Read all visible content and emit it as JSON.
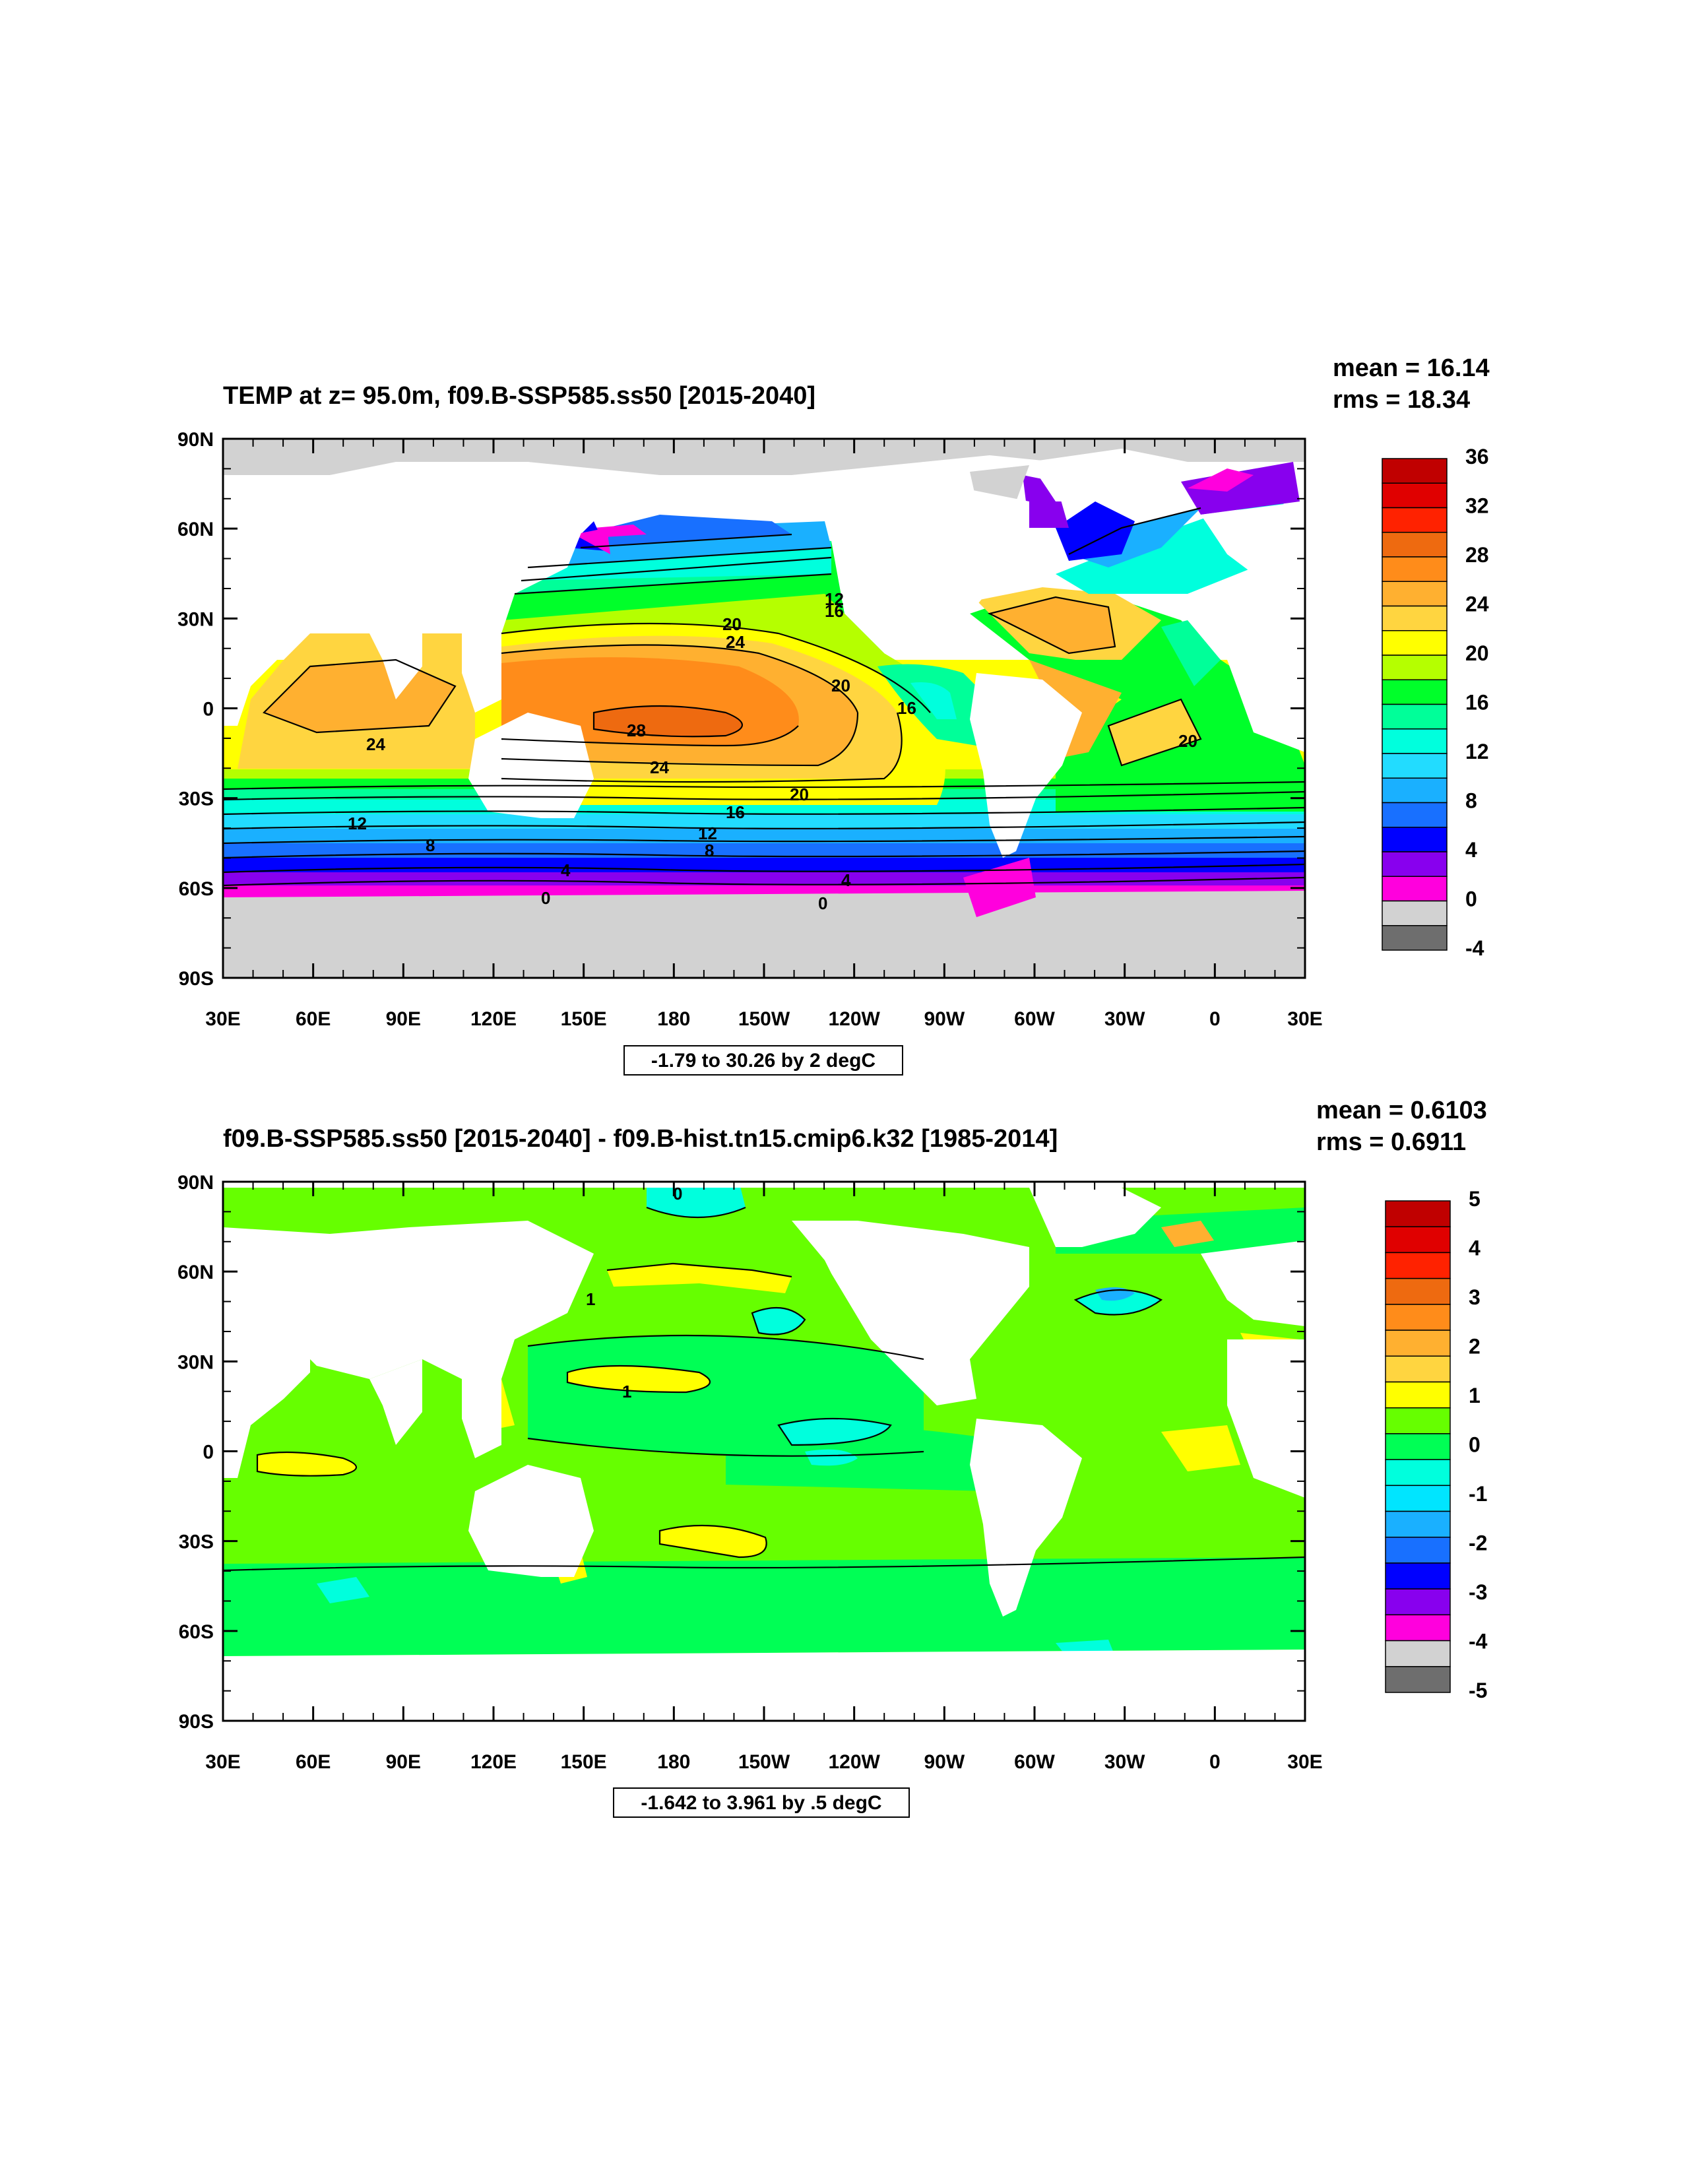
{
  "maps": [
    {
      "id": "top",
      "title": "TEMP at z=  95.0m, f09.B-SSP585.ss50 [2015-2040]",
      "mean_text": "mean = 16.14",
      "rms_text": "rms = 18.34",
      "range_text": "-1.79 to 30.26 by 2 degC",
      "lat_ticks": [
        "90N",
        "60N",
        "30N",
        "0",
        "30S",
        "60S",
        "90S"
      ],
      "lon_ticks": [
        "30E",
        "60E",
        "90E",
        "120E",
        "150E",
        "180",
        "150W",
        "120W",
        "90W",
        "60W",
        "30W",
        "0",
        "30E"
      ],
      "colorbar": {
        "labels": [
          "36",
          "32",
          "28",
          "24",
          "20",
          "16",
          "12",
          "8",
          "4",
          "0",
          "-4"
        ],
        "colors": [
          "#c00000",
          "#e00000",
          "#ff2200",
          "#ee6a10",
          "#ff8c1a",
          "#ffb030",
          "#ffd540",
          "#ffff00",
          "#b5ff00",
          "#00ff2a",
          "#00ff99",
          "#00ffdd",
          "#22dcff",
          "#1ab0ff",
          "#1870ff",
          "#0000ff",
          "#8800ee",
          "#ff00dd",
          "#d2d2d2",
          "#6e6e6e"
        ]
      },
      "contour_labels": [
        "28",
        "24",
        "24",
        "24",
        "20",
        "20",
        "20",
        "20",
        "16",
        "16",
        "16",
        "12",
        "12",
        "12",
        "8",
        "8",
        "4",
        "4",
        "0",
        "0"
      ]
    },
    {
      "id": "bottom",
      "title": "f09.B-SSP585.ss50 [2015-2040] - f09.B-hist.tn15.cmip6.k32 [1985-2014]",
      "mean_text": "mean = 0.6103",
      "rms_text": "rms = 0.6911",
      "range_text": "-1.642 to 3.961 by .5 degC",
      "lat_ticks": [
        "90N",
        "60N",
        "30N",
        "0",
        "30S",
        "60S",
        "90S"
      ],
      "lon_ticks": [
        "30E",
        "60E",
        "90E",
        "120E",
        "150E",
        "180",
        "150W",
        "120W",
        "90W",
        "60W",
        "30W",
        "0",
        "30E"
      ],
      "colorbar": {
        "labels": [
          "5",
          "4",
          "3",
          "2",
          "1",
          "0",
          "-1",
          "-2",
          "-3",
          "-4",
          "-5"
        ],
        "colors": [
          "#c00000",
          "#e00000",
          "#ff2200",
          "#ee6a10",
          "#ff8c1a",
          "#ffb030",
          "#ffd540",
          "#ffff00",
          "#66ff00",
          "#00ff55",
          "#00ffdd",
          "#00e5ff",
          "#1ab0ff",
          "#1870ff",
          "#0000ff",
          "#8800ee",
          "#ff00dd",
          "#d2d2d2",
          "#6e6e6e"
        ]
      },
      "contour_labels": [
        "0",
        "1",
        "1"
      ]
    }
  ]
}
